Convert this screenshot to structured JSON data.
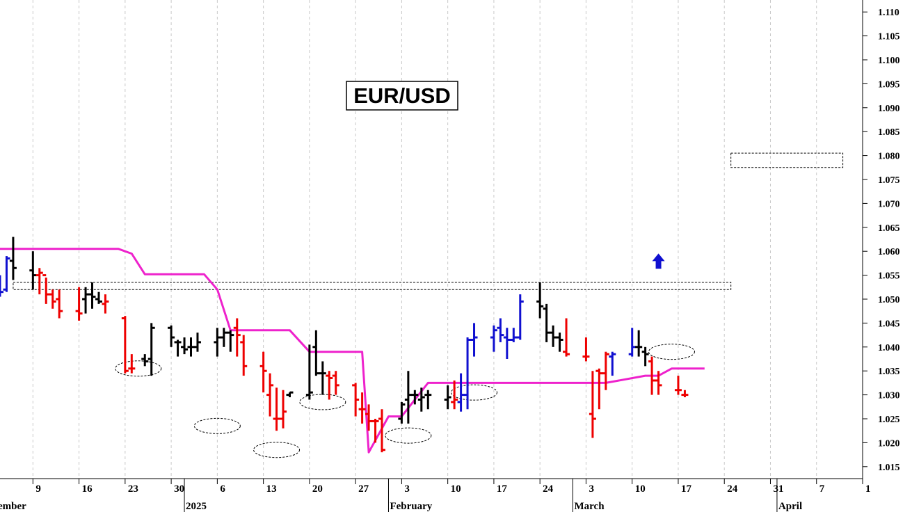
{
  "chart_data": {
    "type": "ohlc",
    "title": "EUR/USD",
    "colors": {
      "up": "#1010d0",
      "down": "#ee0000",
      "neutral": "#000000",
      "stop_line": "#ee22cc",
      "grid": "#c8c8c8",
      "annotation": "#000000"
    },
    "ylim": [
      1.0125,
      1.1125
    ],
    "yticks": [
      "1.015",
      "1.020",
      "1.025",
      "1.030",
      "1.035",
      "1.040",
      "1.045",
      "1.050",
      "1.055",
      "1.060",
      "1.065",
      "1.070",
      "1.075",
      "1.080",
      "1.085",
      "1.090",
      "1.095",
      "1.100",
      "1.105",
      "1.110"
    ],
    "xticks": [
      {
        "label": "9",
        "date": "2024-12-09"
      },
      {
        "label": "16",
        "date": "2024-12-16"
      },
      {
        "label": "23",
        "date": "2024-12-23"
      },
      {
        "label": "30",
        "date": "2024-12-30"
      },
      {
        "label": "6",
        "date": "2025-01-06"
      },
      {
        "label": "13",
        "date": "2025-01-13"
      },
      {
        "label": "20",
        "date": "2025-01-20"
      },
      {
        "label": "27",
        "date": "2025-01-27"
      },
      {
        "label": "3",
        "date": "2025-02-03"
      },
      {
        "label": "10",
        "date": "2025-02-10"
      },
      {
        "label": "17",
        "date": "2025-02-17"
      },
      {
        "label": "24",
        "date": "2025-02-24"
      },
      {
        "label": "3",
        "date": "2025-03-03"
      },
      {
        "label": "10",
        "date": "2025-03-10"
      },
      {
        "label": "17",
        "date": "2025-03-17"
      },
      {
        "label": "24",
        "date": "2025-03-24"
      },
      {
        "label": "31",
        "date": "2025-03-31"
      },
      {
        "label": "7",
        "date": "2025-04-07"
      },
      {
        "label": "1",
        "date": "2025-04-14"
      }
    ],
    "month_labels": [
      {
        "label": "ember",
        "date": "2024-12-01"
      },
      {
        "label": "2025",
        "date": "2025-01-01"
      },
      {
        "label": "February",
        "date": "2025-02-01"
      },
      {
        "label": "March",
        "date": "2025-03-01"
      },
      {
        "label": "April",
        "date": "2025-04-01"
      }
    ],
    "x_range": [
      "2024-12-04",
      "2025-04-14"
    ],
    "bars": [
      {
        "d": "2024-12-04",
        "o": 1.051,
        "h": 1.055,
        "l": 1.0505,
        "c": 1.0515,
        "k": "u"
      },
      {
        "d": "2024-12-05",
        "o": 1.052,
        "h": 1.059,
        "l": 1.0515,
        "c": 1.0585,
        "k": "u"
      },
      {
        "d": "2024-12-06",
        "o": 1.058,
        "h": 1.063,
        "l": 1.054,
        "c": 1.0565,
        "k": "n"
      },
      {
        "d": "2024-12-09",
        "o": 1.056,
        "h": 1.06,
        "l": 1.052,
        "c": 1.055,
        "k": "n"
      },
      {
        "d": "2024-12-10",
        "o": 1.055,
        "h": 1.0565,
        "l": 1.051,
        "c": 1.0555,
        "k": "d"
      },
      {
        "d": "2024-12-11",
        "o": 1.055,
        "h": 1.0545,
        "l": 1.049,
        "c": 1.051,
        "k": "d"
      },
      {
        "d": "2024-12-12",
        "o": 1.051,
        "h": 1.052,
        "l": 1.048,
        "c": 1.0495,
        "k": "d"
      },
      {
        "d": "2024-12-13",
        "o": 1.05,
        "h": 1.052,
        "l": 1.046,
        "c": 1.0475,
        "k": "d"
      },
      {
        "d": "2024-12-16",
        "o": 1.0475,
        "h": 1.0525,
        "l": 1.0455,
        "c": 1.047,
        "k": "d"
      },
      {
        "d": "2024-12-17",
        "o": 1.05,
        "h": 1.0525,
        "l": 1.047,
        "c": 1.051,
        "k": "n"
      },
      {
        "d": "2024-12-18",
        "o": 1.051,
        "h": 1.0535,
        "l": 1.048,
        "c": 1.0505,
        "k": "n"
      },
      {
        "d": "2024-12-19",
        "o": 1.05,
        "h": 1.0515,
        "l": 1.049,
        "c": 1.0495,
        "k": "n"
      },
      {
        "d": "2024-12-20",
        "o": 1.049,
        "h": 1.051,
        "l": 1.047,
        "c": 1.0495,
        "k": "d"
      },
      {
        "d": "2024-12-23",
        "o": 1.046,
        "h": 1.0465,
        "l": 1.0345,
        "c": 1.035,
        "k": "d"
      },
      {
        "d": "2024-12-24",
        "o": 1.0355,
        "h": 1.0385,
        "l": 1.0345,
        "c": 1.0355,
        "k": "d"
      },
      {
        "d": "2024-12-26",
        "o": 1.0375,
        "h": 1.0385,
        "l": 1.036,
        "c": 1.037,
        "k": "n"
      },
      {
        "d": "2024-12-27",
        "o": 1.0375,
        "h": 1.045,
        "l": 1.034,
        "c": 1.044,
        "k": "n"
      },
      {
        "d": "2024-12-30",
        "o": 1.044,
        "h": 1.0445,
        "l": 1.04,
        "c": 1.042,
        "k": "n"
      },
      {
        "d": "2024-12-31",
        "o": 1.041,
        "h": 1.0415,
        "l": 1.038,
        "c": 1.041,
        "k": "n"
      },
      {
        "d": "2025-01-01",
        "o": 1.04,
        "h": 1.042,
        "l": 1.0385,
        "c": 1.0395,
        "k": "n"
      },
      {
        "d": "2025-01-02",
        "o": 1.04,
        "h": 1.042,
        "l": 1.038,
        "c": 1.04,
        "k": "n"
      },
      {
        "d": "2025-01-03",
        "o": 1.04,
        "h": 1.043,
        "l": 1.039,
        "c": 1.041,
        "k": "n"
      },
      {
        "d": "2025-01-06",
        "o": 1.041,
        "h": 1.044,
        "l": 1.038,
        "c": 1.042,
        "k": "n"
      },
      {
        "d": "2025-01-07",
        "o": 1.042,
        "h": 1.044,
        "l": 1.04,
        "c": 1.043,
        "k": "n"
      },
      {
        "d": "2025-01-08",
        "o": 1.043,
        "h": 1.0435,
        "l": 1.039,
        "c": 1.0425,
        "k": "n"
      },
      {
        "d": "2025-01-09",
        "o": 1.044,
        "h": 1.046,
        "l": 1.038,
        "c": 1.0425,
        "k": "d"
      },
      {
        "d": "2025-01-10",
        "o": 1.041,
        "h": 1.0425,
        "l": 1.034,
        "c": 1.036,
        "k": "d"
      },
      {
        "d": "2025-01-13",
        "o": 1.036,
        "h": 1.039,
        "l": 1.0305,
        "c": 1.035,
        "k": "d"
      },
      {
        "d": "2025-01-14",
        "o": 1.03,
        "h": 1.0345,
        "l": 1.0255,
        "c": 1.032,
        "k": "d"
      },
      {
        "d": "2025-01-15",
        "o": 1.025,
        "h": 1.0315,
        "l": 1.0225,
        "c": 1.025,
        "k": "d"
      },
      {
        "d": "2025-01-16",
        "o": 1.025,
        "h": 1.031,
        "l": 1.023,
        "c": 1.0265,
        "k": "d"
      },
      {
        "d": "2025-01-17",
        "o": 1.03,
        "h": 1.0305,
        "l": 1.0295,
        "c": 1.0305,
        "k": "n"
      },
      {
        "d": "2025-01-20",
        "o": 1.03,
        "h": 1.0405,
        "l": 1.029,
        "c": 1.0305,
        "k": "n"
      },
      {
        "d": "2025-01-21",
        "o": 1.04,
        "h": 1.0435,
        "l": 1.034,
        "c": 1.0345,
        "k": "n"
      },
      {
        "d": "2025-01-22",
        "o": 1.0345,
        "h": 1.037,
        "l": 1.03,
        "c": 1.0345,
        "k": "n"
      },
      {
        "d": "2025-01-23",
        "o": 1.034,
        "h": 1.035,
        "l": 1.029,
        "c": 1.0335,
        "k": "d"
      },
      {
        "d": "2025-01-24",
        "o": 1.034,
        "h": 1.035,
        "l": 1.03,
        "c": 1.032,
        "k": "d"
      },
      {
        "d": "2025-01-27",
        "o": 1.032,
        "h": 1.0325,
        "l": 1.0255,
        "c": 1.029,
        "k": "d"
      },
      {
        "d": "2025-01-28",
        "o": 1.027,
        "h": 1.0305,
        "l": 1.024,
        "c": 1.027,
        "k": "d"
      },
      {
        "d": "2025-01-29",
        "o": 1.026,
        "h": 1.028,
        "l": 1.0225,
        "c": 1.0245,
        "k": "d"
      },
      {
        "d": "2025-01-30",
        "o": 1.0245,
        "h": 1.025,
        "l": 1.02,
        "c": 1.0245,
        "k": "d"
      },
      {
        "d": "2025-01-31",
        "o": 1.025,
        "h": 1.027,
        "l": 1.018,
        "c": 1.0185,
        "k": "d"
      },
      {
        "d": "2025-02-03",
        "o": 1.025,
        "h": 1.0285,
        "l": 1.024,
        "c": 1.028,
        "k": "n"
      },
      {
        "d": "2025-02-04",
        "o": 1.029,
        "h": 1.035,
        "l": 1.024,
        "c": 1.03,
        "k": "n"
      },
      {
        "d": "2025-02-05",
        "o": 1.03,
        "h": 1.031,
        "l": 1.028,
        "c": 1.03,
        "k": "n"
      },
      {
        "d": "2025-02-06",
        "o": 1.029,
        "h": 1.0315,
        "l": 1.0265,
        "c": 1.0295,
        "k": "n"
      },
      {
        "d": "2025-02-07",
        "o": 1.03,
        "h": 1.031,
        "l": 1.027,
        "c": 1.03,
        "k": "n"
      },
      {
        "d": "2025-02-10",
        "o": 1.029,
        "h": 1.032,
        "l": 1.027,
        "c": 1.0295,
        "k": "n"
      },
      {
        "d": "2025-02-11",
        "o": 1.0285,
        "h": 1.033,
        "l": 1.027,
        "c": 1.029,
        "k": "d"
      },
      {
        "d": "2025-02-12",
        "o": 1.0285,
        "h": 1.0345,
        "l": 1.0265,
        "c": 1.03,
        "k": "u"
      },
      {
        "d": "2025-02-13",
        "o": 1.03,
        "h": 1.042,
        "l": 1.027,
        "c": 1.0415,
        "k": "u"
      },
      {
        "d": "2025-02-14",
        "o": 1.0415,
        "h": 1.045,
        "l": 1.038,
        "c": 1.042,
        "k": "u"
      },
      {
        "d": "2025-02-17",
        "o": 1.042,
        "h": 1.0445,
        "l": 1.039,
        "c": 1.0435,
        "k": "u"
      },
      {
        "d": "2025-02-18",
        "o": 1.044,
        "h": 1.046,
        "l": 1.041,
        "c": 1.0425,
        "k": "u"
      },
      {
        "d": "2025-02-19",
        "o": 1.042,
        "h": 1.044,
        "l": 1.0375,
        "c": 1.0415,
        "k": "u"
      },
      {
        "d": "2025-02-20",
        "o": 1.0415,
        "h": 1.044,
        "l": 1.041,
        "c": 1.042,
        "k": "u"
      },
      {
        "d": "2025-02-21",
        "o": 1.042,
        "h": 1.051,
        "l": 1.0415,
        "c": 1.0495,
        "k": "u"
      },
      {
        "d": "2025-02-24",
        "o": 1.0495,
        "h": 1.0535,
        "l": 1.046,
        "c": 1.0485,
        "k": "n"
      },
      {
        "d": "2025-02-25",
        "o": 1.048,
        "h": 1.049,
        "l": 1.041,
        "c": 1.043,
        "k": "n"
      },
      {
        "d": "2025-02-26",
        "o": 1.043,
        "h": 1.0445,
        "l": 1.04,
        "c": 1.042,
        "k": "n"
      },
      {
        "d": "2025-02-27",
        "o": 1.042,
        "h": 1.043,
        "l": 1.039,
        "c": 1.0415,
        "k": "n"
      },
      {
        "d": "2025-02-28",
        "o": 1.039,
        "h": 1.046,
        "l": 1.038,
        "c": 1.0385,
        "k": "d"
      },
      {
        "d": "2025-03-03",
        "o": 1.038,
        "h": 1.042,
        "l": 1.037,
        "c": 1.038,
        "k": "d"
      },
      {
        "d": "2025-03-04",
        "o": 1.026,
        "h": 1.035,
        "l": 1.021,
        "c": 1.025,
        "k": "d"
      },
      {
        "d": "2025-03-05",
        "o": 1.035,
        "h": 1.0355,
        "l": 1.027,
        "c": 1.0345,
        "k": "d"
      },
      {
        "d": "2025-03-06",
        "o": 1.0345,
        "h": 1.039,
        "l": 1.031,
        "c": 1.0385,
        "k": "d"
      },
      {
        "d": "2025-03-07",
        "o": 1.038,
        "h": 1.039,
        "l": 1.034,
        "c": 1.0385,
        "k": "u"
      },
      {
        "d": "2025-03-10",
        "o": 1.0385,
        "h": 1.044,
        "l": 1.038,
        "c": 1.04,
        "k": "u"
      },
      {
        "d": "2025-03-11",
        "o": 1.04,
        "h": 1.0435,
        "l": 1.038,
        "c": 1.04,
        "k": "n"
      },
      {
        "d": "2025-03-12",
        "o": 1.039,
        "h": 1.04,
        "l": 1.036,
        "c": 1.0385,
        "k": "n"
      },
      {
        "d": "2025-03-13",
        "o": 1.037,
        "h": 1.038,
        "l": 1.03,
        "c": 1.033,
        "k": "d"
      },
      {
        "d": "2025-03-14",
        "o": 1.033,
        "h": 1.035,
        "l": 1.03,
        "c": 1.032,
        "k": "d"
      },
      {
        "d": "2025-03-17",
        "o": 1.031,
        "h": 1.034,
        "l": 1.03,
        "c": 1.031,
        "k": "d"
      },
      {
        "d": "2025-03-18",
        "o": 1.03,
        "h": 1.031,
        "l": 1.0295,
        "c": 1.03,
        "k": "d"
      }
    ],
    "stop_line": [
      {
        "d": "2024-12-04",
        "v": 1.0605
      },
      {
        "d": "2024-12-22",
        "v": 1.0605
      },
      {
        "d": "2024-12-24",
        "v": 1.0595
      },
      {
        "d": "2024-12-26",
        "v": 1.0552
      },
      {
        "d": "2025-01-04",
        "v": 1.0552
      },
      {
        "d": "2025-01-06",
        "v": 1.052
      },
      {
        "d": "2025-01-08",
        "v": 1.0435
      },
      {
        "d": "2025-01-17",
        "v": 1.0435
      },
      {
        "d": "2025-01-20",
        "v": 1.039
      },
      {
        "d": "2025-01-28",
        "v": 1.039
      },
      {
        "d": "2025-01-29",
        "v": 1.018
      },
      {
        "d": "2025-02-01",
        "v": 1.0255
      },
      {
        "d": "2025-02-03",
        "v": 1.0255
      },
      {
        "d": "2025-02-07",
        "v": 1.0325
      },
      {
        "d": "2025-03-06",
        "v": 1.0325
      },
      {
        "d": "2025-03-12",
        "v": 1.034
      },
      {
        "d": "2025-03-14",
        "v": 1.034
      },
      {
        "d": "2025-03-16",
        "v": 1.0355
      },
      {
        "d": "2025-03-21",
        "v": 1.0355
      }
    ],
    "annotations": {
      "up_arrow": {
        "d": "2025-03-14",
        "v": 1.0575
      },
      "boxes": [
        {
          "d0": "2024-12-06",
          "d1": "2025-03-25",
          "v0": 1.052,
          "v1": 1.0535
        },
        {
          "d0": "2025-03-25",
          "d1": "2025-04-11",
          "v0": 1.0775,
          "v1": 1.0805
        }
      ],
      "ellipses": [
        {
          "d": "2024-12-25",
          "v": 1.0355
        },
        {
          "d": "2025-01-06",
          "v": 1.0235
        },
        {
          "d": "2025-01-15",
          "v": 1.0185
        },
        {
          "d": "2025-01-22",
          "v": 1.0285
        },
        {
          "d": "2025-02-04",
          "v": 1.0215
        },
        {
          "d": "2025-02-14",
          "v": 1.0305
        },
        {
          "d": "2025-03-16",
          "v": 1.039
        }
      ]
    }
  }
}
